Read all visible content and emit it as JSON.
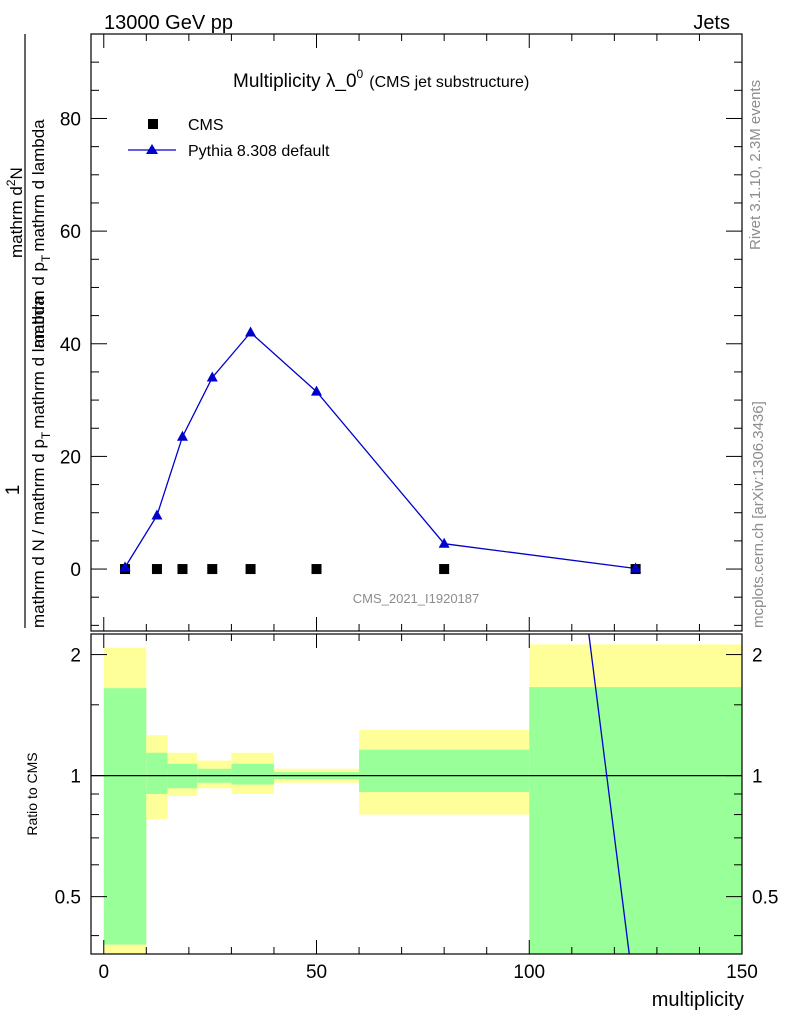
{
  "header": {
    "left": "13000 GeV pp",
    "right": "Jets"
  },
  "chart_data": {
    "type": "scatter",
    "title": "Multiplicity λ_0",
    "title_superscript": "0",
    "subtitle": "(CMS jet substructure)",
    "analysis_id": "CMS_2021_I1920187",
    "side_labels": {
      "rivet": "Rivet 3.1.10,  2.3M events",
      "mcplots": "mcplots.cern.ch [arXiv:1306.3436]"
    },
    "ylabel_numerator": "1",
    "ylabel_denominator": "mathrm d N / mathrm d p",
    "ylabel_subscript": "T",
    "ylabel_rest": "mathrm d lambda",
    "ylabel_inner_numerator": "mathrm d",
    "ylabel_inner_superscript": "2",
    "ylabel_inner_rest": "N",
    "ylabel_inner_denominator": "mathrm d p",
    "ylabel_inner_subscript": "T",
    "ylabel_inner_denominator_rest": "mathrm d lambda",
    "xlabel": "multiplicity",
    "ratio_ylabel": "Ratio to CMS",
    "xlim": [
      -3,
      150
    ],
    "ylim": [
      -11,
      95
    ],
    "ratio_ylim": [
      0.36,
      2.25
    ],
    "x_ticks": [
      0,
      50,
      100,
      150
    ],
    "y_ticks": [
      0,
      20,
      40,
      60,
      80
    ],
    "ratio_ticks": [
      0.5,
      1,
      2
    ],
    "ratio_tick_labels": [
      "0.5",
      "1",
      "2"
    ],
    "legend_position": "top-left",
    "series": [
      {
        "name": "CMS",
        "marker": "square",
        "color": "#000000",
        "x": [
          5,
          12.5,
          18.5,
          25.5,
          34.5,
          50,
          80,
          125
        ],
        "y": [
          0,
          0,
          0,
          0,
          0,
          0,
          0,
          0
        ]
      },
      {
        "name": "Pythia 8.308 default",
        "marker": "triangle",
        "color": "#0000cc",
        "x": [
          5,
          12.5,
          18.5,
          25.5,
          34.5,
          50,
          80,
          125
        ],
        "y": [
          0.3,
          9.5,
          23.5,
          34,
          42,
          31.5,
          4.5,
          0.1
        ]
      }
    ],
    "ratio_bands": [
      {
        "x0": 0,
        "x1": 10,
        "yellow": [
          0.36,
          2.08
        ],
        "green": [
          0.38,
          1.65
        ]
      },
      {
        "x0": 10,
        "x1": 15,
        "yellow": [
          0.78,
          1.26
        ],
        "green": [
          0.9,
          1.14
        ]
      },
      {
        "x0": 15,
        "x1": 22,
        "yellow": [
          0.89,
          1.14
        ],
        "green": [
          0.93,
          1.07
        ]
      },
      {
        "x0": 22,
        "x1": 30,
        "yellow": [
          0.93,
          1.09
        ],
        "green": [
          0.96,
          1.04
        ]
      },
      {
        "x0": 30,
        "x1": 40,
        "yellow": [
          0.9,
          1.14
        ],
        "green": [
          0.95,
          1.07
        ]
      },
      {
        "x0": 40,
        "x1": 60,
        "yellow": [
          0.96,
          1.04
        ],
        "green": [
          0.98,
          1.02
        ]
      },
      {
        "x0": 60,
        "x1": 100,
        "yellow": [
          0.8,
          1.3
        ],
        "green": [
          0.91,
          1.16
        ]
      },
      {
        "x0": 100,
        "x1": 150,
        "yellow": [
          0.36,
          2.12
        ],
        "green": [
          0.36,
          1.66
        ]
      }
    ],
    "ratio_line": {
      "color": "#0000cc",
      "x": [
        114,
        123.5
      ],
      "y": [
        2.25,
        0.36
      ]
    },
    "colors": {
      "yellow_band": "#ffff99",
      "green_band": "#99ff99"
    }
  }
}
